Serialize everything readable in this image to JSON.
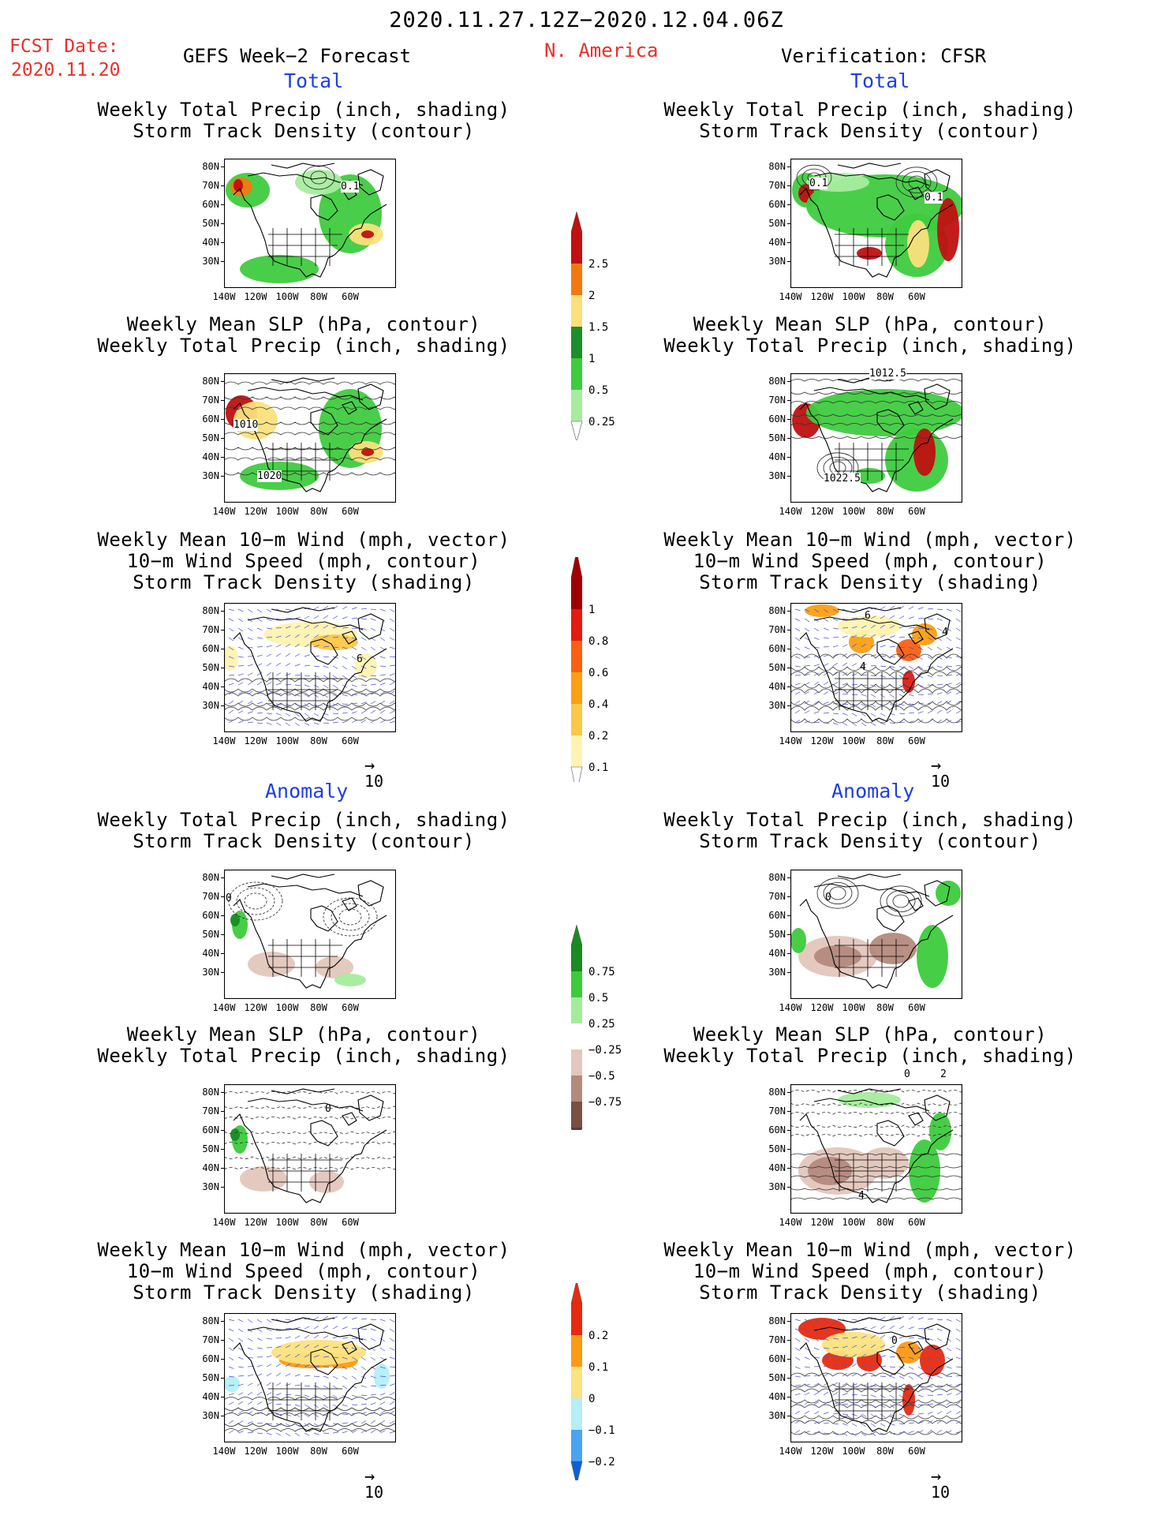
{
  "header": {
    "period": "2020.11.27.12Z−2020.12.04.06Z",
    "fcst_label": "FCST Date:",
    "fcst_date": "2020.11.20",
    "left_title": "GEFS Week−2 Forecast",
    "region": "N. America",
    "right_title": "Verification: CFSR",
    "total_label": "Total",
    "anomaly_label": "Anomaly"
  },
  "panel_titles": {
    "precip_track": [
      "Weekly Total Precip (inch, shading)",
      "Storm Track Density (contour)"
    ],
    "slp_precip": [
      "Weekly Mean SLP (hPa, contour)",
      "Weekly Total Precip (inch, shading)"
    ],
    "wind_track": [
      "Weekly Mean 10−m Wind (mph, vector)",
      "10−m Wind Speed (mph, contour)",
      "Storm Track Density (shading)"
    ]
  },
  "axes": {
    "lat_labels": [
      "80N",
      "70N",
      "60N",
      "50N",
      "40N",
      "30N"
    ],
    "lon_labels": [
      "140W",
      "120W",
      "100W",
      "80W",
      "60W"
    ]
  },
  "contour_labels": {
    "fc_track": "0.1",
    "obs_track_1": "0.1",
    "obs_track_2": "0.1",
    "fc_slp_1": "1010",
    "fc_slp_2": "1020",
    "obs_slp_1": "1012.5",
    "obs_slp_2": "1022.5",
    "fc_wind": "6",
    "obs_wind_1": "6",
    "obs_wind_2": "4",
    "obs_wind_3": "4",
    "anom_obs_track": "0",
    "anom_obs_slp_1": "0",
    "anom_obs_slp_2": "2",
    "anom_obs_slp_3": "4",
    "anom_fc_slp": "0",
    "anom_fc_track": "0",
    "anom_obs_wind": "0"
  },
  "vector_reference": "10",
  "colorbars": {
    "precip_total": {
      "labels": [
        "2.5",
        "2",
        "1.5",
        "1",
        "0.5",
        "0.25"
      ],
      "colors": [
        "#c01010",
        "#f07a10",
        "#fbe07c",
        "#1d8f2a",
        "#3fcb3f",
        "#a8eca0"
      ]
    },
    "track_total": {
      "labels": [
        "1",
        "0.8",
        "0.6",
        "0.4",
        "0.2",
        "0.1"
      ],
      "colors": [
        "#a00000",
        "#e61a0f",
        "#fb5f12",
        "#fb9f13",
        "#fbc84a",
        "#fef3b0"
      ]
    },
    "precip_anom": {
      "labels": [
        "0.75",
        "0.5",
        "0.25",
        "−0.25",
        "−0.5",
        "−0.75"
      ],
      "colors": [
        "#1a8a22",
        "#3ccb3c",
        "#a4ec9c",
        "#ffffff",
        "#e3c6bc",
        "#b48a7d",
        "#7a5044"
      ]
    },
    "track_anom": {
      "labels": [
        "0.2",
        "0.1",
        "0",
        "−0.1",
        "−0.2"
      ],
      "colors": [
        "#e62a10",
        "#fb9a14",
        "#fce380",
        "#b4eef8",
        "#4aa4f2",
        "#0b62d8"
      ]
    }
  }
}
